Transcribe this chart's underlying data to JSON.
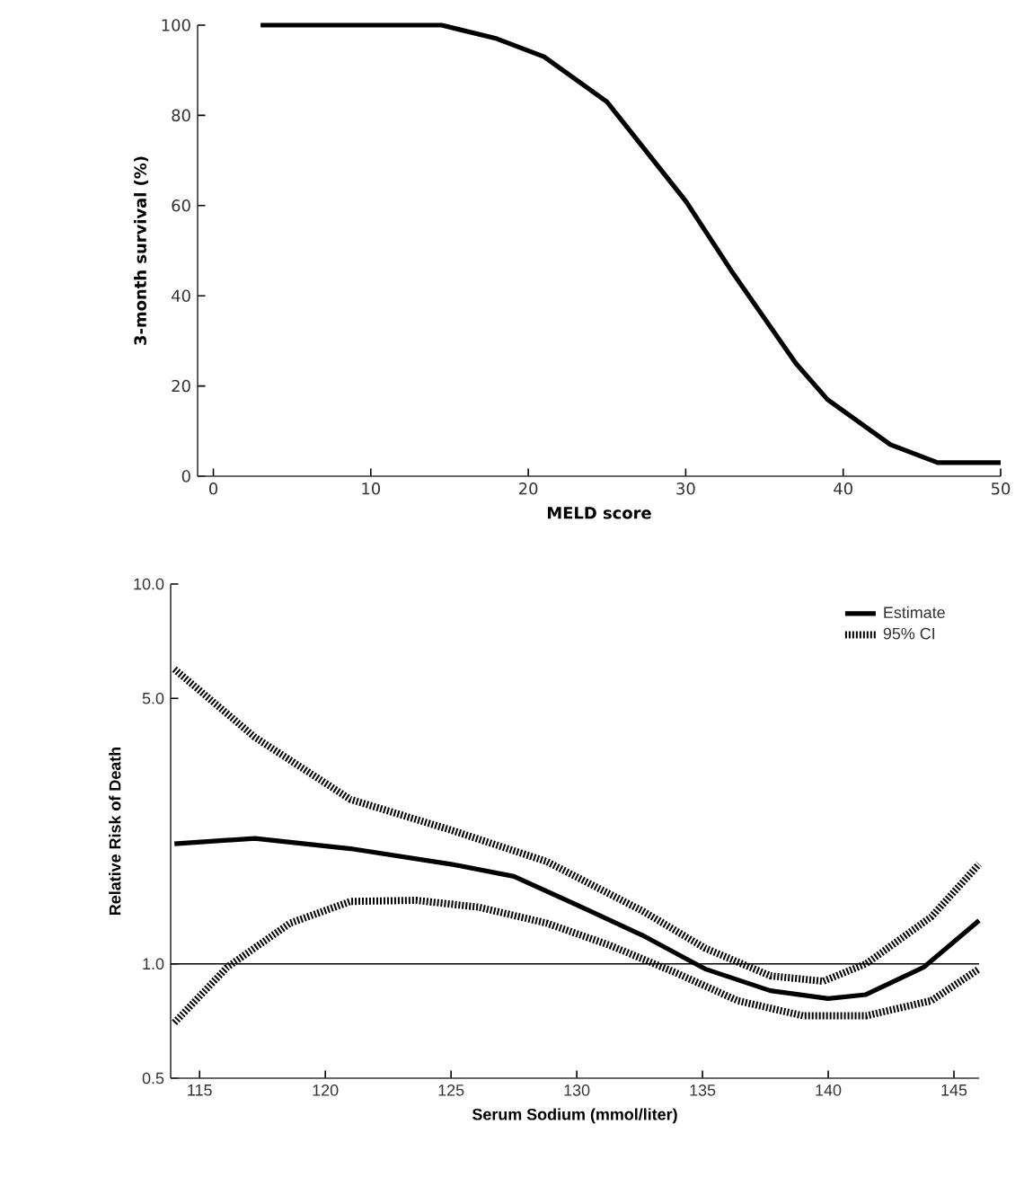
{
  "chart_data": [
    {
      "type": "line",
      "xlabel": "MELD score",
      "ylabel": "3-month survival (%)",
      "xlim": [
        -1,
        50
      ],
      "ylim": [
        0,
        100
      ],
      "xticks": [
        0,
        10,
        20,
        30,
        40,
        50
      ],
      "yticks": [
        0,
        20,
        40,
        60,
        80,
        100
      ],
      "grid": false,
      "legend": false,
      "marker": "none",
      "series": [
        {
          "color": "#000000",
          "line_style": "solid",
          "x": [
            3,
            10.5,
            14.5,
            18,
            21,
            25,
            30,
            33,
            37,
            39,
            43,
            46,
            50
          ],
          "values": [
            100,
            100,
            100,
            97,
            93,
            83,
            61,
            45,
            25,
            17,
            7,
            3,
            3
          ]
        }
      ]
    },
    {
      "type": "line",
      "xlabel": "Serum Sodium (mmol/liter)",
      "ylabel": "Relative Risk of Death",
      "log": "y",
      "xlim": [
        113.85,
        146
      ],
      "ylim": [
        0.5,
        10
      ],
      "xticks": [
        115,
        120,
        125,
        130,
        135,
        140,
        145
      ],
      "yticks": [
        {
          "value": 0.5,
          "label": "0.5"
        },
        {
          "value": 1,
          "label": "1.0"
        },
        {
          "value": 5,
          "label": "5.0"
        },
        {
          "value": 10,
          "label": "10.0"
        }
      ],
      "grid": false,
      "legend": "top right",
      "marker": "none",
      "ref_lines": [
        {
          "axis": "y",
          "value": 1,
          "color": "#000000"
        }
      ],
      "series": [
        {
          "name": "Estimate",
          "color": "#000000",
          "line_style": "solid",
          "x": [
            114,
            117.2,
            121,
            125,
            127.5,
            130,
            132.6,
            135.1,
            137.7,
            140,
            141.5,
            143.8,
            146
          ],
          "values": [
            2.07,
            2.14,
            2.01,
            1.83,
            1.7,
            1.43,
            1.19,
            0.97,
            0.85,
            0.81,
            0.83,
            0.98,
            1.3
          ]
        },
        {
          "name": "95% CI",
          "color": "#000000",
          "line_style": "dotted",
          "x": [
            114,
            117.2,
            121,
            125,
            128.8,
            132.6,
            135.1,
            137.7,
            139.8,
            141.5,
            144.1,
            146
          ],
          "values": [
            5.97,
            3.95,
            2.71,
            2.25,
            1.86,
            1.38,
            1.1,
            0.93,
            0.9,
            1.0,
            1.33,
            1.83
          ]
        },
        {
          "color": "#000000",
          "line_style": "dotted",
          "x": [
            114,
            116.1,
            118.6,
            121,
            123.6,
            126.1,
            128.8,
            131.3,
            133.9,
            136.4,
            139,
            141.5,
            144.1,
            146
          ],
          "values": [
            0.7,
            0.98,
            1.28,
            1.46,
            1.47,
            1.41,
            1.28,
            1.12,
            0.95,
            0.8,
            0.73,
            0.73,
            0.8,
            0.97
          ]
        }
      ]
    }
  ]
}
